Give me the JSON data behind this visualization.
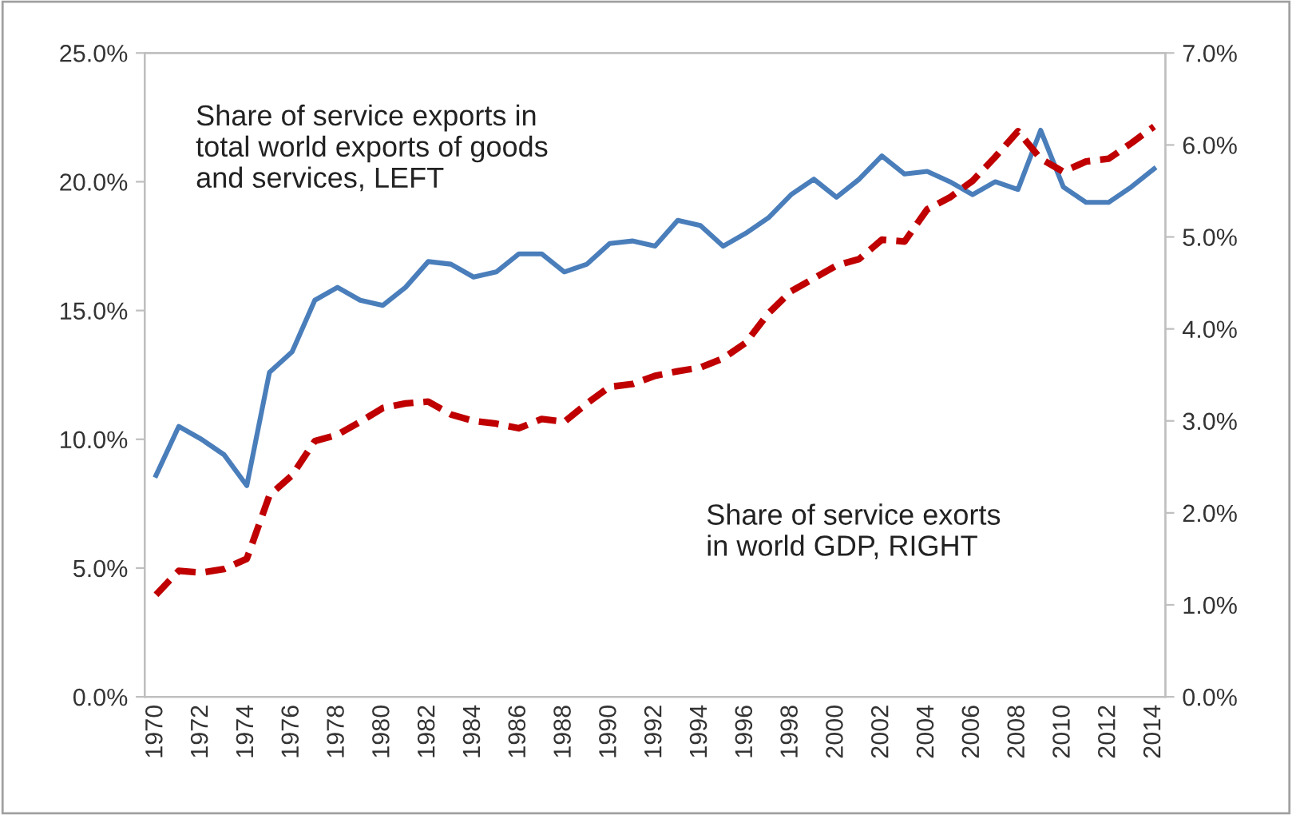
{
  "chart_data": {
    "type": "line",
    "grid": false,
    "legend": false,
    "x": [
      1970,
      1971,
      1972,
      1973,
      1974,
      1975,
      1976,
      1977,
      1978,
      1979,
      1980,
      1981,
      1982,
      1983,
      1984,
      1985,
      1986,
      1987,
      1988,
      1989,
      1990,
      1991,
      1992,
      1993,
      1994,
      1995,
      1996,
      1997,
      1998,
      1999,
      2000,
      2001,
      2002,
      2003,
      2004,
      2005,
      2006,
      2007,
      2008,
      2009,
      2010,
      2011,
      2012,
      2013,
      2014
    ],
    "xlim": [
      1969.5,
      2014.5
    ],
    "xticks": [
      1970,
      1972,
      1974,
      1976,
      1978,
      1980,
      1982,
      1984,
      1986,
      1988,
      1990,
      1992,
      1994,
      1996,
      1998,
      2000,
      2002,
      2004,
      2006,
      2008,
      2010,
      2012,
      2014
    ],
    "ylim": [
      0,
      25
    ],
    "yticks": [
      {
        "value": 0,
        "label": "0.0%"
      },
      {
        "value": 5,
        "label": "5.0%"
      },
      {
        "value": 10,
        "label": "10.0%"
      },
      {
        "value": 15,
        "label": "15.0%"
      },
      {
        "value": 20,
        "label": "20.0%"
      },
      {
        "value": 25,
        "label": "25.0%"
      }
    ],
    "y2lim": [
      0,
      7
    ],
    "y2ticks": [
      {
        "value": 0,
        "label": "0.0%"
      },
      {
        "value": 1,
        "label": "1.0%"
      },
      {
        "value": 2,
        "label": "2.0%"
      },
      {
        "value": 3,
        "label": "3.0%"
      },
      {
        "value": 4,
        "label": "4.0%"
      },
      {
        "value": 5,
        "label": "5.0%"
      },
      {
        "value": 6,
        "label": "6.0%"
      },
      {
        "value": 7,
        "label": "7.0%"
      }
    ],
    "series": [
      {
        "color": "#4a7ebb",
        "line_style": "solid",
        "values": [
          8.6,
          10.5,
          10.0,
          9.4,
          8.2,
          12.6,
          13.4,
          15.4,
          15.9,
          15.4,
          15.2,
          15.9,
          16.9,
          16.8,
          16.3,
          16.5,
          17.2,
          17.2,
          16.5,
          16.8,
          17.6,
          17.7,
          17.5,
          18.5,
          18.3,
          17.5,
          18.0,
          18.6,
          19.5,
          20.1,
          19.4,
          20.1,
          21.0,
          20.3,
          20.4,
          20.0,
          19.5,
          20.0,
          19.7,
          22.0,
          19.8,
          19.2,
          19.2,
          19.8,
          20.5
        ]
      },
      {
        "color": "#c00000",
        "line_style": "dashed",
        "axis": "y2",
        "values": [
          1.11,
          1.37,
          1.35,
          1.39,
          1.5,
          2.19,
          2.41,
          2.78,
          2.85,
          2.99,
          3.14,
          3.19,
          3.21,
          3.07,
          3.0,
          2.97,
          2.92,
          3.02,
          2.99,
          3.19,
          3.37,
          3.4,
          3.49,
          3.54,
          3.58,
          3.68,
          3.85,
          4.17,
          4.41,
          4.55,
          4.69,
          4.76,
          4.97,
          4.95,
          5.3,
          5.43,
          5.61,
          5.87,
          6.15,
          5.85,
          5.71,
          5.82,
          5.85,
          6.02,
          6.2
        ]
      }
    ],
    "annotations": [
      "Share of service exports in\ntotal world exports of goods\nand services, LEFT",
      "Share of service exorts\nin world GDP, RIGHT"
    ]
  }
}
